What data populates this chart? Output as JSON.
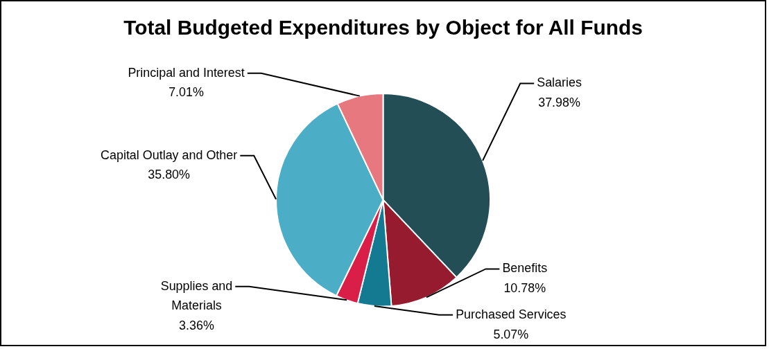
{
  "chart_data": {
    "type": "pie",
    "title": "Total Budgeted Expenditures by Object for All Funds",
    "categories": [
      "Salaries",
      "Benefits",
      "Purchased Services",
      "Supplies and Materials",
      "Capital Outlay and Other",
      "Principal and Interest"
    ],
    "values": [
      37.98,
      10.78,
      5.07,
      3.36,
      35.8,
      7.01
    ],
    "colors": [
      "#234e55",
      "#961b2e",
      "#137a92",
      "#d91e48",
      "#4badc6",
      "#e8787f"
    ],
    "value_labels": [
      "37.98%",
      "10.78%",
      "5.07%",
      "3.36%",
      "35.80%",
      "7.01%"
    ],
    "legend": false
  }
}
